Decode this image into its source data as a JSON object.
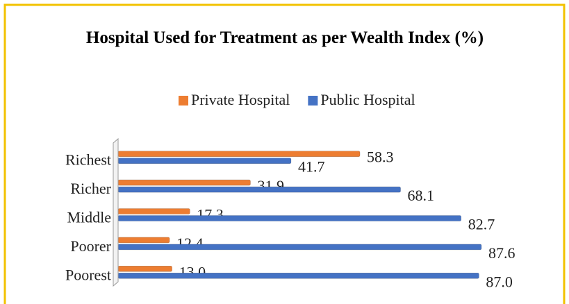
{
  "chart_data": {
    "type": "bar",
    "orientation": "horizontal",
    "title": "Hospital Used for Treatment as per Wealth Index (%)",
    "categories": [
      "Richest",
      "Richer",
      "Middle",
      "Poorer",
      "Poorest"
    ],
    "series": [
      {
        "name": "Private Hospital",
        "color": "#ed7d31",
        "values": [
          58.3,
          31.9,
          17.3,
          12.4,
          13
        ],
        "value_labels": [
          "58.3",
          "31.9",
          "17.3",
          "12.4",
          "13.0"
        ]
      },
      {
        "name": "Public Hospital",
        "color": "#4472c4",
        "values": [
          41.7,
          68.1,
          82.7,
          87.6,
          87
        ],
        "value_labels": [
          "41.7",
          "68.1",
          "82.7",
          "87.6",
          "87.0"
        ]
      }
    ],
    "xlim": [
      0,
      100
    ],
    "legend": "top"
  }
}
